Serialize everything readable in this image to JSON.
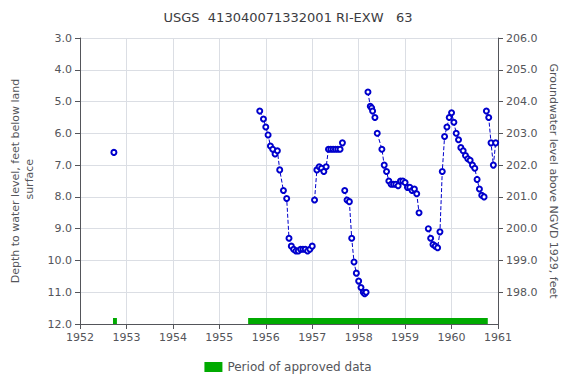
{
  "chart_data": {
    "type": "line",
    "title": "USGS  413040071332001 RI-EXW   63",
    "ylabel": "Depth to water level, feet below land\n surface",
    "y2label": "Groundwater level above NGVD 1929, feet",
    "xlim": [
      1952.0,
      1961.0
    ],
    "xticks": [
      1952,
      1953,
      1954,
      1955,
      1956,
      1957,
      1958,
      1959,
      1960,
      1961
    ],
    "ylim": [
      12.0,
      3.0
    ],
    "yticks": [
      {
        "value": 3.0,
        "label": "3.0"
      },
      {
        "value": 4.0,
        "label": "4.0"
      },
      {
        "value": 5.0,
        "label": "5.0"
      },
      {
        "value": 6.0,
        "label": "6.0"
      },
      {
        "value": 7.0,
        "label": "7.0"
      },
      {
        "value": 8.0,
        "label": "8.0"
      },
      {
        "value": 9.0,
        "label": "9.0"
      },
      {
        "value": 10.0,
        "label": "10.0"
      },
      {
        "value": 11.0,
        "label": "11.0"
      },
      {
        "value": 12.0,
        "label": "12.0"
      }
    ],
    "y2lim": [
      197.0,
      206.0
    ],
    "y2ticks": [
      {
        "value": 206.0,
        "label": "206.0"
      },
      {
        "value": 205.0,
        "label": "205.0"
      },
      {
        "value": 204.0,
        "label": "204.0"
      },
      {
        "value": 203.0,
        "label": "203.0"
      },
      {
        "value": 202.0,
        "label": "202.0"
      },
      {
        "value": 201.0,
        "label": "201.0"
      },
      {
        "value": 200.0,
        "label": "200.0"
      },
      {
        "value": 199.0,
        "label": "199.0"
      },
      {
        "value": 198.0,
        "label": "198.0"
      }
    ],
    "grid": true,
    "legend": "bottom",
    "series": [
      {
        "color": "#0000cc",
        "marker": "circle",
        "line_style": "dashed",
        "x": [
          1952.73
        ],
        "values": [
          6.6
        ]
      },
      {
        "color": "#0000cc",
        "marker": "circle",
        "line_style": "dashed",
        "x": [
          1955.87,
          1955.95,
          1956.0,
          1956.05,
          1956.1,
          1956.15,
          1956.2,
          1956.25,
          1956.3,
          1956.38,
          1956.45,
          1956.5,
          1956.55,
          1956.6,
          1956.65,
          1956.7,
          1956.75,
          1956.8,
          1956.85,
          1956.9,
          1956.95,
          1957.0
        ],
        "values": [
          5.3,
          5.55,
          5.8,
          6.05,
          6.4,
          6.5,
          6.65,
          6.55,
          7.15,
          7.8,
          8.05,
          9.3,
          9.55,
          9.65,
          9.7,
          9.7,
          9.65,
          9.65,
          9.65,
          9.7,
          9.65,
          9.55
        ]
      },
      {
        "color": "#0000cc",
        "marker": "circle",
        "line_style": "dashed",
        "x": [
          1957.05,
          1957.1,
          1957.15,
          1957.2,
          1957.25,
          1957.3,
          1957.35,
          1957.4,
          1957.45,
          1957.5,
          1957.55,
          1957.6,
          1957.65
        ],
        "values": [
          8.1,
          7.15,
          7.05,
          7.1,
          7.2,
          7.05,
          6.5,
          6.5,
          6.5,
          6.5,
          6.5,
          6.5,
          6.3
        ]
      },
      {
        "color": "#0000cc",
        "marker": "circle",
        "line_style": "dashed",
        "x": [
          1957.7,
          1957.75,
          1957.8,
          1957.85,
          1957.9,
          1957.95,
          1958.0,
          1958.05,
          1958.1,
          1958.13,
          1958.16
        ],
        "values": [
          7.8,
          8.1,
          8.15,
          9.3,
          10.05,
          10.4,
          10.65,
          10.85,
          11.0,
          11.05,
          11.0
        ]
      },
      {
        "color": "#0000cc",
        "marker": "circle",
        "line_style": "dashed",
        "x": [
          1958.2,
          1958.25,
          1958.28,
          1958.3,
          1958.35
        ],
        "values": [
          4.7,
          5.15,
          5.2,
          5.3,
          5.5
        ]
      },
      {
        "color": "#0000cc",
        "marker": "circle",
        "line_style": "dashed",
        "x": [
          1958.4,
          1958.5,
          1958.55,
          1958.6,
          1958.65,
          1958.7,
          1958.75,
          1958.8,
          1958.85,
          1958.9,
          1958.95,
          1959.0,
          1959.05,
          1959.1,
          1959.15,
          1959.2,
          1959.25,
          1959.3
        ],
        "values": [
          6.0,
          6.5,
          7.0,
          7.2,
          7.5,
          7.6,
          7.6,
          7.6,
          7.65,
          7.5,
          7.5,
          7.55,
          7.7,
          7.7,
          7.8,
          7.75,
          7.9,
          8.5
        ]
      },
      {
        "color": "#0000cc",
        "marker": "circle",
        "line_style": "dashed",
        "x": [
          1959.5,
          1959.55,
          1959.6,
          1959.65,
          1959.7,
          1959.75,
          1959.8,
          1959.85,
          1959.9,
          1959.95,
          1960.0,
          1960.05,
          1960.1,
          1960.15,
          1960.2,
          1960.25,
          1960.3,
          1960.35,
          1960.4,
          1960.45,
          1960.5,
          1960.55,
          1960.6,
          1960.65,
          1960.7
        ],
        "values": [
          9.0,
          9.3,
          9.5,
          9.55,
          9.6,
          9.1,
          7.2,
          6.1,
          5.8,
          5.5,
          5.35,
          5.65,
          6.0,
          6.2,
          6.45,
          6.55,
          6.7,
          6.8,
          6.85,
          7.0,
          7.1,
          7.45,
          7.75,
          7.95,
          8.0
        ]
      },
      {
        "color": "#0000cc",
        "marker": "circle",
        "line_style": "dashed",
        "x": [
          1960.75,
          1960.8,
          1960.85,
          1960.9,
          1960.95
        ],
        "values": [
          5.3,
          5.5,
          6.3,
          7.0,
          6.3
        ]
      }
    ],
    "approved_periods": {
      "name": "Period of approved data",
      "color": "#00aa00",
      "ranges": [
        [
          1952.71,
          1952.795
        ],
        [
          1955.62,
          1960.78
        ]
      ]
    }
  }
}
